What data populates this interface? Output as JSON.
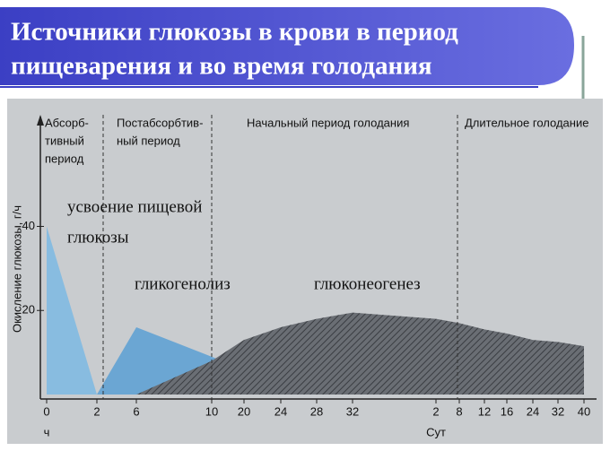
{
  "slide": {
    "title_lines": [
      "Источники глюкозы в крови в период",
      "пищеварения и во время голодания"
    ]
  },
  "chart_data": {
    "type": "area",
    "y_label": "Окисление глюкозы, г/ч",
    "categories": [
      "0",
      "2",
      "6",
      "10",
      "20",
      "24",
      "28",
      "32",
      "2",
      "8",
      "12",
      "16",
      "24",
      "32",
      "40"
    ],
    "x_units": [
      {
        "label": "ч",
        "at": 0
      },
      {
        "label": "Сут",
        "at": 8
      }
    ],
    "periods": [
      [
        "Абсорб-",
        "тивный",
        "период"
      ],
      [
        "Постабсорбтив-",
        "ный период"
      ],
      [
        "Начальный период голодания"
      ],
      [
        "Длительное голодание"
      ]
    ],
    "series": [
      {
        "name": [
          "усвоение пищевой",
          "глюкозы"
        ],
        "color": "#7db9e3",
        "values": [
          40,
          0,
          null,
          null,
          null,
          null,
          null,
          null,
          null,
          null,
          null,
          null,
          null,
          null,
          null
        ]
      },
      {
        "name": [
          "гликогенолиз"
        ],
        "color": "#5a9fd4",
        "values": [
          null,
          0,
          16,
          9,
          6,
          3,
          1,
          0,
          null,
          null,
          null,
          null,
          null,
          null,
          null
        ]
      },
      {
        "name": [
          "глюконеогенез"
        ],
        "color": "#6a6e74",
        "hatch": true,
        "values": [
          null,
          null,
          0,
          8,
          13,
          16,
          18,
          19.5,
          18,
          17,
          15.5,
          14.5,
          13,
          12.5,
          11.5
        ]
      }
    ],
    "ylim": [
      0,
      64
    ],
    "yticks": [
      20,
      40
    ]
  }
}
